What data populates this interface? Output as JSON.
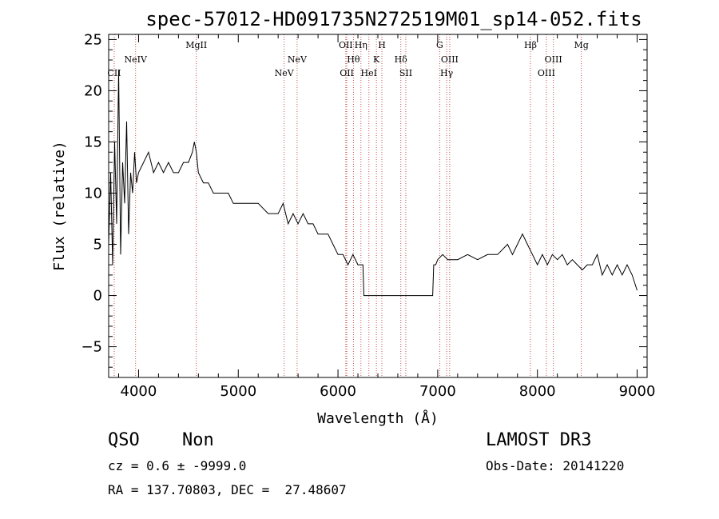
{
  "chart_data": {
    "type": "line",
    "title": "spec-57012-HD091735N272519M01_sp14-052.fits",
    "xlabel": "Wavelength (Å)",
    "ylabel": "Flux (relative)",
    "xlim": [
      3700,
      9100
    ],
    "ylim": [
      -8,
      25.5
    ],
    "xticks": [
      4000,
      5000,
      6000,
      7000,
      8000,
      9000
    ],
    "yticks": [
      -5,
      0,
      5,
      10,
      15,
      20,
      25
    ],
    "grid": false,
    "series": [
      {
        "x": [
          3700,
          3720,
          3740,
          3760,
          3780,
          3800,
          3820,
          3840,
          3860,
          3880,
          3900,
          3920,
          3940,
          3960,
          3980,
          4000,
          4050,
          4100,
          4150,
          4200,
          4250,
          4300,
          4350,
          4400,
          4450,
          4500,
          4540,
          4560,
          4580,
          4600,
          4650,
          4700,
          4750,
          4800,
          4850,
          4900,
          4950,
          5000,
          5100,
          5200,
          5300,
          5400,
          5450,
          5500,
          5550,
          5600,
          5650,
          5700,
          5750,
          5800,
          5850,
          5900,
          5950,
          6000,
          6050,
          6100,
          6150,
          6200,
          6230,
          6250,
          6260,
          6400,
          6600,
          6800,
          6950,
          6960,
          6980,
          7000,
          7050,
          7100,
          7200,
          7300,
          7400,
          7500,
          7600,
          7700,
          7750,
          7800,
          7850,
          7900,
          7950,
          8000,
          8050,
          8100,
          8150,
          8200,
          8250,
          8300,
          8350,
          8400,
          8450,
          8500,
          8550,
          8600,
          8650,
          8700,
          8750,
          8800,
          8850,
          8900,
          8950,
          9000
        ],
        "y": [
          5,
          12,
          3,
          15,
          7,
          22,
          4,
          13,
          9,
          17,
          6,
          12,
          10,
          14,
          11,
          12,
          13,
          14,
          12,
          13,
          12,
          13,
          12,
          12,
          13,
          13,
          14,
          15,
          14,
          12,
          11,
          11,
          10,
          10,
          10,
          10,
          9,
          9,
          9,
          9,
          8,
          8,
          9,
          7,
          8,
          7,
          8,
          7,
          7,
          6,
          6,
          6,
          5,
          4,
          4,
          3,
          4,
          3,
          3,
          3,
          0,
          0,
          0,
          0,
          0,
          3,
          3,
          3.5,
          4,
          3.5,
          3.5,
          4,
          3.5,
          4,
          4,
          5,
          4,
          5,
          6,
          5,
          4,
          3,
          4,
          3,
          4,
          3.5,
          4,
          3,
          3.5,
          3,
          2.5,
          3,
          3,
          4,
          2,
          3,
          2,
          3,
          2,
          3,
          2,
          0.5
        ]
      }
    ],
    "lines": [
      {
        "label": "CII",
        "x": 3756
      },
      {
        "label": "NeIV",
        "x": 3970
      },
      {
        "label": "MgII",
        "x": 4579
      },
      {
        "label": "NeV",
        "x": 5460
      },
      {
        "label": "NeV",
        "x": 5590
      },
      {
        "label": "OII",
        "x": 6078
      },
      {
        "label": "OII",
        "x": 6088
      },
      {
        "label": "Hθ",
        "x": 6155
      },
      {
        "label": "Hη",
        "x": 6230
      },
      {
        "label": "HeI",
        "x": 6310
      },
      {
        "label": "K",
        "x": 6385
      },
      {
        "label": "H",
        "x": 6440
      },
      {
        "label": "Hδ",
        "x": 6630
      },
      {
        "label": "SII",
        "x": 6680
      },
      {
        "label": "G",
        "x": 7020
      },
      {
        "label": "Hγ",
        "x": 7090
      },
      {
        "label": "OIII",
        "x": 7120
      },
      {
        "label": "Hβ",
        "x": 7930
      },
      {
        "label": "OIII",
        "x": 8090
      },
      {
        "label": "OIII",
        "x": 8160
      },
      {
        "label": "Mg",
        "x": 8440
      }
    ]
  },
  "footer": {
    "class_label": "QSO",
    "subclass_label": "Non",
    "survey": "LAMOST DR3",
    "cz_line": "cz = 0.6 ± -9999.0",
    "obs_date": "Obs-Date: 20141220",
    "coords": "RA = 137.70803, DEC =  27.48607"
  },
  "colors": {
    "spectrum": "#000000",
    "line_marker": "#c0504d",
    "axis": "#000000"
  }
}
